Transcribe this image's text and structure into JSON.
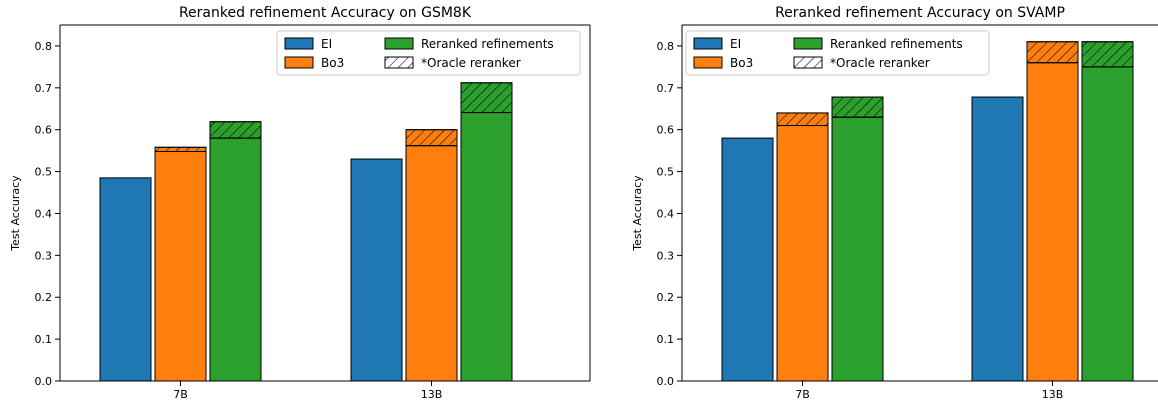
{
  "chart_data": [
    {
      "type": "bar",
      "title": "Reranked refinement Accuracy on GSM8K",
      "xlabel": "",
      "ylabel": "Test Accuracy",
      "ylim": [
        0,
        0.85
      ],
      "yticks": [
        "0.0",
        "0.1",
        "0.2",
        "0.3",
        "0.4",
        "0.5",
        "0.6",
        "0.7",
        "0.8"
      ],
      "grid": false,
      "legend_position": "top-right",
      "categories": [
        "7B",
        "13B"
      ],
      "series": [
        {
          "name": "EI",
          "color": "#1f77b4",
          "values": [
            0.485,
            0.53
          ],
          "oracle": [
            null,
            null
          ]
        },
        {
          "name": "Bo3",
          "color": "#ff7f0e",
          "values": [
            0.548,
            0.562
          ],
          "oracle": [
            0.558,
            0.6
          ]
        },
        {
          "name": "Reranked refinements",
          "color": "#2ca02c",
          "values": [
            0.58,
            0.641
          ],
          "oracle": [
            0.619,
            0.712
          ]
        }
      ],
      "hatch_legend": "*Oracle reranker"
    },
    {
      "type": "bar",
      "title": "Reranked refinement Accuracy on SVAMP",
      "xlabel": "",
      "ylabel": "Test Accuracy",
      "ylim": [
        0,
        0.85
      ],
      "yticks": [
        "0.0",
        "0.1",
        "0.2",
        "0.3",
        "0.4",
        "0.5",
        "0.6",
        "0.7",
        "0.8"
      ],
      "grid": false,
      "legend_position": "top-left",
      "categories": [
        "7B",
        "13B"
      ],
      "series": [
        {
          "name": "EI",
          "color": "#1f77b4",
          "values": [
            0.58,
            0.678
          ],
          "oracle": [
            null,
            null
          ]
        },
        {
          "name": "Bo3",
          "color": "#ff7f0e",
          "values": [
            0.61,
            0.76
          ],
          "oracle": [
            0.64,
            0.81
          ]
        },
        {
          "name": "Reranked refinements",
          "color": "#2ca02c",
          "values": [
            0.63,
            0.75
          ],
          "oracle": [
            0.678,
            0.81
          ]
        }
      ],
      "hatch_legend": "*Oracle reranker"
    }
  ]
}
